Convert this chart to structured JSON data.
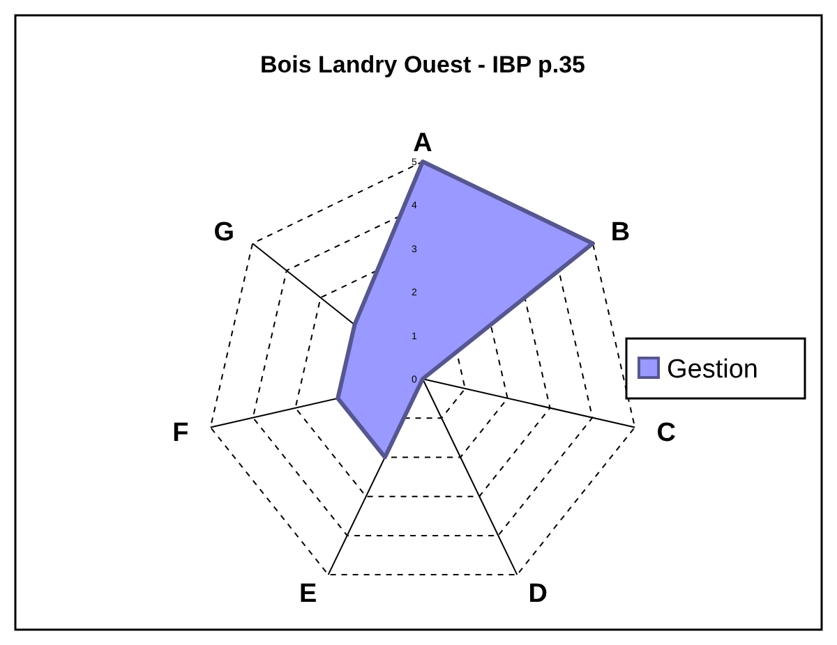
{
  "chart_data": {
    "type": "radar",
    "title": "Bois Landry Ouest - IBP p.35",
    "categories": [
      "A",
      "B",
      "C",
      "D",
      "E",
      "F",
      "G"
    ],
    "series": [
      {
        "name": "Gestion",
        "color": "#9999ff",
        "values": [
          5,
          5,
          0,
          0,
          2,
          2,
          2
        ]
      }
    ],
    "ylim": [
      0,
      5
    ],
    "yticks": [
      0,
      1,
      2,
      3,
      4,
      5
    ],
    "grid": true,
    "legend": "right",
    "line_style": "solid",
    "marker": "none"
  }
}
